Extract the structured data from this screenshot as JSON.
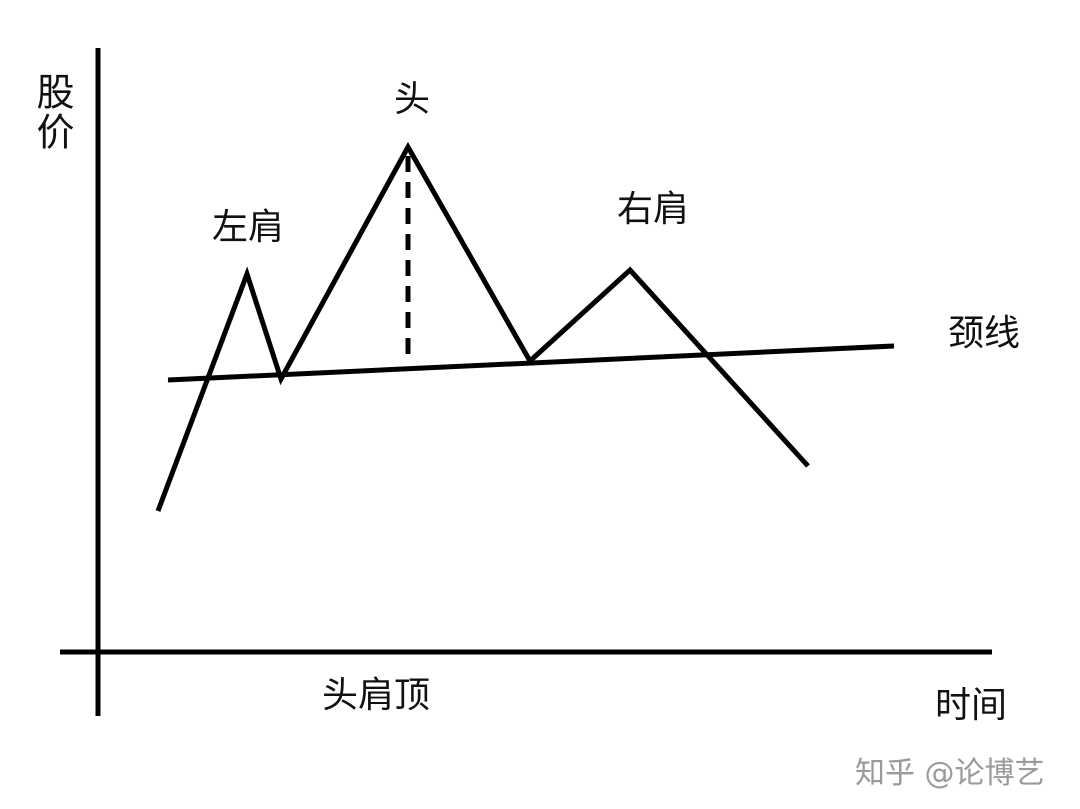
{
  "diagram": {
    "y_axis_label": "股价",
    "x_axis_label": "时间",
    "title": "头肩顶",
    "labels": {
      "head": "头",
      "left_shoulder": "左肩",
      "right_shoulder": "右肩",
      "neckline": "颈线"
    },
    "line_color": "#000000"
  },
  "watermark": "知乎 @论博艺"
}
